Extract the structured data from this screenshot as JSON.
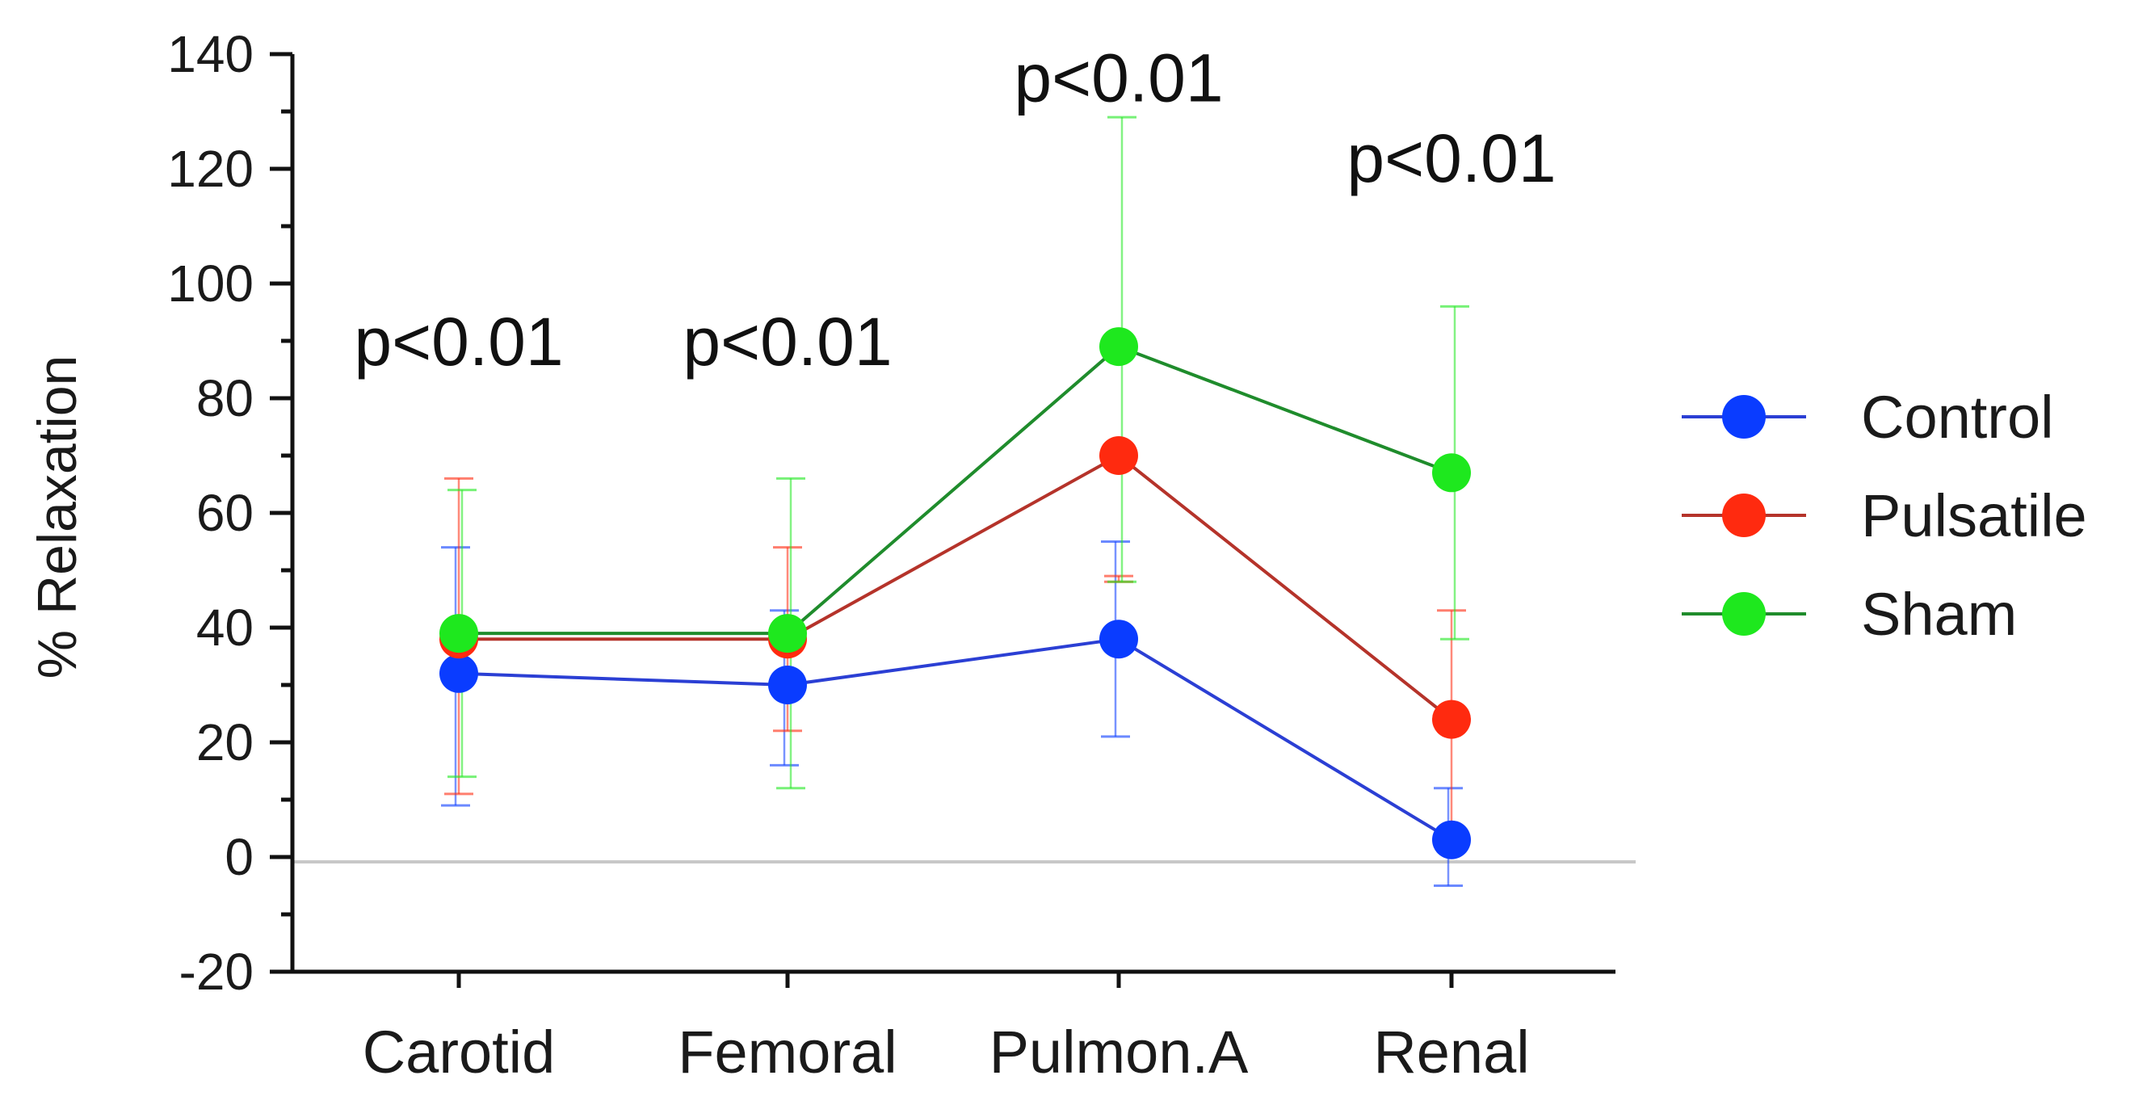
{
  "chart_data": {
    "type": "line",
    "categories": [
      "Carotid",
      "Femoral",
      "Pulmon.A",
      "Renal"
    ],
    "ylabel": "% Relaxation",
    "xlabel": "",
    "ylim": [
      -20,
      140
    ],
    "yticks": [
      -20,
      0,
      20,
      40,
      60,
      80,
      100,
      120,
      140
    ],
    "ytick_labels": [
      "-20",
      "0",
      "20",
      "40",
      "60",
      "80",
      "100",
      "120",
      "140"
    ],
    "reference_line_y": 0,
    "legend_position": "right",
    "series": [
      {
        "name": "Control",
        "color": "#0a3cff",
        "line_color": "#2b3fd4",
        "values": [
          32,
          30,
          38,
          3
        ],
        "error_low": [
          9,
          16,
          21,
          -5
        ],
        "error_high": [
          54,
          43,
          55,
          12
        ]
      },
      {
        "name": "Pulsatile",
        "color": "#ff2a0f",
        "line_color": "#b5332a",
        "values": [
          38,
          38,
          70,
          24
        ],
        "error_low": [
          11,
          22,
          48,
          5
        ],
        "error_high": [
          66,
          54,
          49,
          43
        ]
      },
      {
        "name": "Sham",
        "color": "#1ee81e",
        "line_color": "#1f8c2c",
        "values": [
          39,
          39,
          89,
          67
        ],
        "error_low": [
          14,
          12,
          48,
          38
        ],
        "error_high": [
          64,
          66,
          129,
          96
        ]
      }
    ],
    "annotations": [
      {
        "category": "Carotid",
        "text": "p<0.01",
        "y": 90
      },
      {
        "category": "Femoral",
        "text": "p<0.01",
        "y": 90
      },
      {
        "category": "Pulmon.A",
        "text": "p<0.01",
        "y": 136
      },
      {
        "category": "Renal",
        "text": "p<0.01",
        "y": 122
      }
    ]
  }
}
